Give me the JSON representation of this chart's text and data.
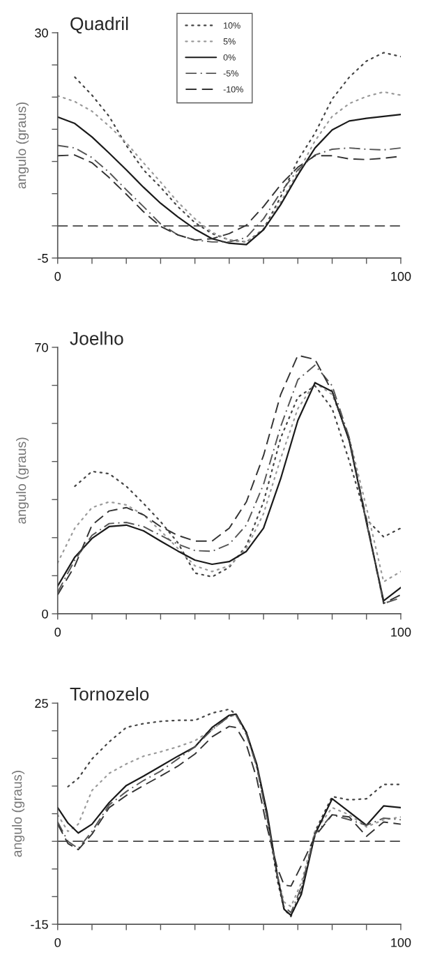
{
  "chart_data": [
    {
      "type": "line",
      "title": "Quadril",
      "ylabel": "angulo (graus)",
      "legend": "top",
      "x": [
        0,
        5,
        10,
        15,
        20,
        25,
        30,
        35,
        40,
        45,
        50,
        55,
        60,
        65,
        70,
        75,
        80,
        85,
        90,
        95,
        100
      ],
      "xlim": [
        0,
        100
      ],
      "xticks": [
        0,
        {
          "value": 10,
          "label": null
        },
        {
          "value": 20,
          "label": null
        },
        {
          "value": 30,
          "label": null
        },
        {
          "value": 40,
          "label": null
        },
        {
          "value": 50,
          "label": null
        },
        {
          "value": 60,
          "label": null
        },
        {
          "value": 70,
          "label": null
        },
        {
          "value": 80,
          "label": null
        },
        {
          "value": 90,
          "label": null
        },
        100
      ],
      "ylim": [
        -5,
        30
      ],
      "yticks": [
        -5,
        {
          "value": 0,
          "label": null
        },
        {
          "value": 5,
          "label": null
        },
        {
          "value": 10,
          "label": null
        },
        {
          "value": 15,
          "label": null
        },
        {
          "value": 20,
          "label": null
        },
        {
          "value": 25,
          "label": null
        },
        30
      ],
      "ref_lines": [
        {
          "axis": "y",
          "value": 0,
          "color": "#444444",
          "line_style": "dashed"
        }
      ],
      "series": [
        {
          "name": "10%",
          "color": "#444444",
          "line_style": "dotted",
          "values": [
            null,
            23.1,
            20.3,
            17.0,
            12.5,
            8.7,
            6.0,
            3.0,
            0.5,
            -1.2,
            -2.2,
            -2.5,
            -0.5,
            4.5,
            10.2,
            14.4,
            19.7,
            23.1,
            25.6,
            26.9,
            26.3
          ]
        },
        {
          "name": "5%",
          "color": "#9a9a9a",
          "line_style": "dotted",
          "values": [
            20.2,
            19.3,
            17.8,
            15.5,
            12.9,
            9.8,
            6.8,
            3.7,
            1.1,
            -1.0,
            -2.2,
            -2.5,
            -0.6,
            3.7,
            8.3,
            13.2,
            17.0,
            19.0,
            20.1,
            20.8,
            20.3
          ]
        },
        {
          "name": "0%",
          "color": "#1a1a1a",
          "line_style": "solid",
          "values": [
            16.9,
            15.9,
            13.8,
            11.3,
            8.7,
            6.0,
            3.5,
            1.4,
            -0.5,
            -2.0,
            -2.7,
            -2.9,
            -0.6,
            3.3,
            7.9,
            12.1,
            14.9,
            16.3,
            16.7,
            17.0,
            17.3
          ]
        },
        {
          "name": "-5%",
          "color": "#555555",
          "line_style": "dashdot",
          "values": [
            12.5,
            12.1,
            10.6,
            8.3,
            5.6,
            3.0,
            0.3,
            -1.4,
            -2.2,
            -2.5,
            -2.5,
            -1.8,
            1.1,
            5.2,
            8.7,
            11.0,
            11.9,
            12.1,
            11.9,
            11.8,
            12.1
          ]
        },
        {
          "name": "-10%",
          "color": "#333333",
          "line_style": "dashed",
          "values": [
            10.9,
            11.0,
            9.8,
            7.5,
            4.9,
            2.2,
            -0.1,
            -1.4,
            -2.2,
            -2.0,
            -1.2,
            0.1,
            3.0,
            6.4,
            9.1,
            10.9,
            10.9,
            10.4,
            10.3,
            10.5,
            10.8
          ]
        }
      ]
    },
    {
      "type": "line",
      "title": "Joelho",
      "ylabel": "angulo (graus)",
      "x": [
        0,
        5,
        10,
        15,
        20,
        25,
        30,
        35,
        40,
        45,
        50,
        55,
        60,
        65,
        70,
        75,
        80,
        85,
        90,
        95,
        100
      ],
      "xlim": [
        0,
        100
      ],
      "xticks": [
        0,
        {
          "value": 10,
          "label": null
        },
        {
          "value": 20,
          "label": null
        },
        {
          "value": 30,
          "label": null
        },
        {
          "value": 40,
          "label": null
        },
        {
          "value": 50,
          "label": null
        },
        {
          "value": 60,
          "label": null
        },
        {
          "value": 70,
          "label": null
        },
        {
          "value": 80,
          "label": null
        },
        {
          "value": 90,
          "label": null
        },
        100
      ],
      "ylim": [
        0,
        70
      ],
      "yticks": [
        0,
        {
          "value": 10,
          "label": null
        },
        {
          "value": 20,
          "label": null
        },
        {
          "value": 30,
          "label": null
        },
        {
          "value": 40,
          "label": null
        },
        {
          "value": 50,
          "label": null
        },
        {
          "value": 60,
          "label": null
        },
        70
      ],
      "series": [
        {
          "color": "#444444",
          "line_style": "dotted",
          "values": [
            null,
            33.5,
            37.4,
            36.8,
            33.5,
            29.0,
            24.2,
            18.7,
            10.7,
            9.7,
            12.2,
            17.9,
            29.4,
            46.2,
            56.9,
            59.9,
            53.9,
            40.1,
            24.8,
            20.2,
            22.5
          ]
        },
        {
          "color": "#9a9a9a",
          "line_style": "dotted",
          "values": [
            13.4,
            22.5,
            27.9,
            29.4,
            28.6,
            26.0,
            21.8,
            17.2,
            12.6,
            11.1,
            12.6,
            17.2,
            26.3,
            40.8,
            53.9,
            60.7,
            57.6,
            46.2,
            27.9,
            8.4,
            11.1
          ]
        },
        {
          "color": "#1a1a1a",
          "line_style": "solid",
          "values": [
            7.3,
            14.9,
            19.8,
            22.9,
            23.3,
            21.8,
            19.1,
            16.5,
            14.1,
            13.0,
            13.7,
            16.4,
            22.5,
            35.5,
            50.8,
            60.7,
            58.4,
            45.4,
            24.0,
            3.4,
            6.9
          ]
        },
        {
          "color": "#555555",
          "line_style": "dashdot",
          "values": [
            5.7,
            14.1,
            20.6,
            23.7,
            24.0,
            22.9,
            20.6,
            18.3,
            16.6,
            16.4,
            18.3,
            23.3,
            34.0,
            49.2,
            61.5,
            65.3,
            59.9,
            46.2,
            24.0,
            2.7,
            4.2
          ]
        },
        {
          "color": "#333333",
          "line_style": "dashed",
          "values": [
            5.0,
            12.6,
            23.3,
            27.0,
            27.9,
            26.0,
            22.9,
            20.6,
            19.1,
            19.1,
            22.5,
            29.4,
            41.6,
            57.6,
            67.9,
            66.8,
            58.4,
            45.4,
            24.8,
            2.7,
            5.0
          ]
        }
      ]
    },
    {
      "type": "line",
      "title": "Tornozelo",
      "ylabel": "angulo (graus)",
      "x": [
        0,
        3,
        6,
        10,
        15,
        20,
        25,
        30,
        35,
        40,
        45,
        50,
        52,
        55,
        58,
        61,
        64,
        66,
        68,
        71,
        75,
        80,
        85,
        90,
        95,
        100
      ],
      "xlim": [
        0,
        100
      ],
      "xticks": [
        0,
        {
          "value": 10,
          "label": null
        },
        {
          "value": 20,
          "label": null
        },
        {
          "value": 30,
          "label": null
        },
        {
          "value": 40,
          "label": null
        },
        {
          "value": 50,
          "label": null
        },
        {
          "value": 60,
          "label": null
        },
        {
          "value": 70,
          "label": null
        },
        {
          "value": 80,
          "label": null
        },
        {
          "value": 90,
          "label": null
        },
        100
      ],
      "ylim": [
        -15,
        25
      ],
      "yticks": [
        -15,
        {
          "value": -10,
          "label": null
        },
        {
          "value": -5,
          "label": null
        },
        {
          "value": 0,
          "label": null
        },
        {
          "value": 5,
          "label": null
        },
        {
          "value": 10,
          "label": null
        },
        {
          "value": 15,
          "label": null
        },
        {
          "value": 20,
          "label": null
        },
        25
      ],
      "ref_lines": [
        {
          "axis": "y",
          "value": 0,
          "color": "#444444",
          "line_style": "dashed"
        }
      ],
      "series": [
        {
          "color": "#444444",
          "line_style": "dotted",
          "values": [
            null,
            9.9,
            11.4,
            14.9,
            18.0,
            20.6,
            21.3,
            21.7,
            21.9,
            21.9,
            23.2,
            23.9,
            23.0,
            19.7,
            13.6,
            4.4,
            -7.0,
            -12.3,
            -13.6,
            -8.8,
            1.8,
            8.1,
            7.5,
            7.7,
            10.3,
            10.3
          ]
        },
        {
          "color": "#9a9a9a",
          "line_style": "dotted",
          "values": [
            4.8,
            1.8,
            3.1,
            9.2,
            12.3,
            14.0,
            15.4,
            16.2,
            17.1,
            18.2,
            20.2,
            22.6,
            22.8,
            19.5,
            13.6,
            4.4,
            -6.1,
            -11.0,
            -11.8,
            -7.5,
            1.8,
            6.1,
            4.8,
            2.6,
            3.9,
            4.4
          ]
        },
        {
          "color": "#1a1a1a",
          "line_style": "solid",
          "values": [
            6.1,
            3.3,
            1.5,
            3.1,
            7.0,
            10.1,
            11.8,
            13.6,
            15.4,
            17.1,
            20.6,
            22.8,
            23.0,
            19.7,
            14.0,
            5.3,
            -6.1,
            -12.3,
            -13.4,
            -9.6,
            1.3,
            7.7,
            5.3,
            2.9,
            6.4,
            6.1
          ]
        },
        {
          "color": "#555555",
          "line_style": "dashdot",
          "values": [
            3.5,
            0.0,
            -1.3,
            1.8,
            6.6,
            9.0,
            11.0,
            12.7,
            14.9,
            17.1,
            20.2,
            22.6,
            22.8,
            19.3,
            13.6,
            4.4,
            -6.1,
            -11.8,
            -12.9,
            -8.3,
            1.3,
            4.8,
            3.9,
            2.9,
            4.2,
            3.9
          ]
        },
        {
          "color": "#333333",
          "line_style": "dashed",
          "values": [
            3.1,
            -0.4,
            -1.5,
            1.3,
            6.1,
            8.3,
            10.1,
            11.8,
            13.6,
            15.8,
            18.9,
            20.8,
            20.6,
            17.5,
            11.4,
            2.6,
            -4.8,
            -7.9,
            -8.1,
            -4.4,
            0.9,
            4.8,
            4.4,
            0.9,
            3.5,
            3.1
          ]
        }
      ]
    }
  ]
}
